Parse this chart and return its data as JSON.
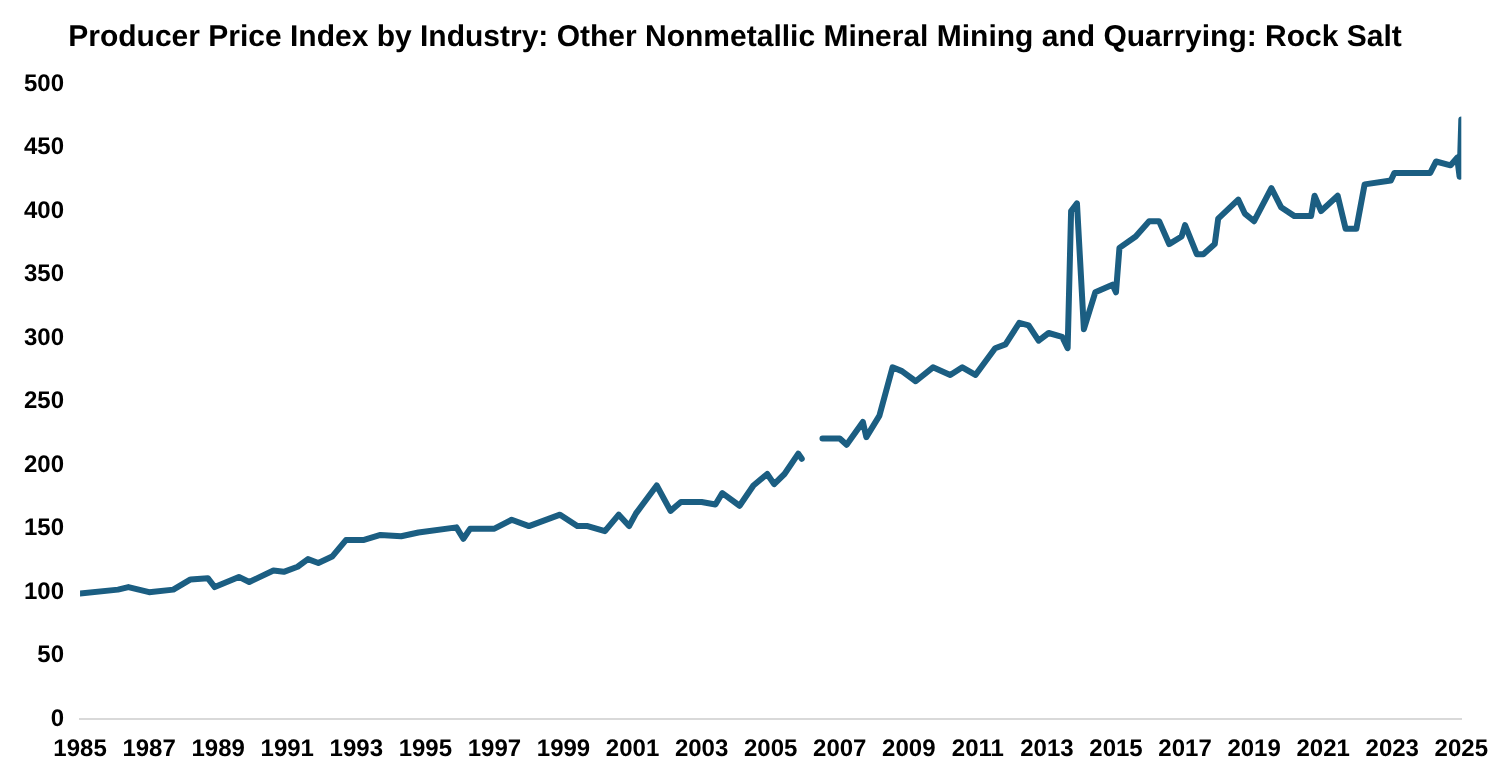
{
  "chart_data": {
    "type": "line",
    "title": "Producer Price Index by Industry: Other Nonmetallic Mineral Mining and Quarrying: Rock Salt",
    "xlim": [
      1985,
      2025
    ],
    "xticks": [
      1985,
      1987,
      1989,
      1991,
      1993,
      1995,
      1997,
      1999,
      2001,
      2003,
      2005,
      2007,
      2009,
      2011,
      2013,
      2015,
      2017,
      2019,
      2021,
      2023,
      2025
    ],
    "ylim": [
      0,
      500
    ],
    "yticks": [
      0,
      50,
      100,
      150,
      200,
      250,
      300,
      350,
      400,
      450,
      500
    ],
    "grid": false,
    "legend": false,
    "marker": "none",
    "line_style": "solid",
    "series": [
      {
        "color": "#1b5e82",
        "x": [
          1985.0,
          1986.1,
          1986.4,
          1987.0,
          1987.7,
          1988.2,
          1988.7,
          1988.9,
          1989.6,
          1989.9,
          1990.6,
          1990.9,
          1991.3,
          1991.6,
          1991.9,
          1992.3,
          1992.7,
          1993.2,
          1993.7,
          1994.3,
          1994.8,
          1995.9,
          1996.1,
          1996.3,
          1997.0,
          1997.5,
          1998.0,
          1998.9,
          1999.4,
          1999.7,
          2000.2,
          2000.6,
          2000.9,
          2001.1,
          2001.7,
          2002.1,
          2002.4,
          2003.0,
          2003.4,
          2003.6,
          2004.1,
          2004.5,
          2004.9,
          2005.1,
          2005.4,
          2005.8,
          2005.9,
          2006.2,
          2006.5,
          2007.0,
          2007.2,
          2007.67,
          2007.77,
          2008.15,
          2008.53,
          2008.8,
          2009.2,
          2009.7,
          2010.2,
          2010.55,
          2010.93,
          2011.5,
          2011.8,
          2012.2,
          2012.47,
          2012.76,
          2013.05,
          2013.44,
          2013.6,
          2013.7,
          2013.87,
          2014.07,
          2014.4,
          2014.9,
          2015.0,
          2015.1,
          2015.57,
          2015.96,
          2016.25,
          2016.54,
          2016.9,
          2017.0,
          2017.34,
          2017.53,
          2017.86,
          2017.96,
          2018.54,
          2018.73,
          2019.0,
          2019.5,
          2019.78,
          2020.17,
          2020.65,
          2020.75,
          2020.94,
          2021.42,
          2021.65,
          2021.96,
          2022.2,
          2022.96,
          2023.06,
          2024.1,
          2024.27,
          2024.69,
          2024.88,
          2024.95,
          2025.0
        ],
        "values": [
          99,
          102,
          104,
          100,
          102,
          110,
          111,
          104,
          112,
          108,
          117,
          116,
          120,
          126,
          123,
          128,
          141,
          141,
          145,
          144,
          147,
          151,
          142,
          150,
          150,
          157,
          152,
          161,
          152,
          152,
          148,
          161,
          152,
          162,
          184,
          164,
          171,
          171,
          169,
          178,
          168,
          184,
          193,
          185,
          193,
          209,
          205,
          null,
          221,
          221,
          216,
          234,
          222,
          239,
          277,
          274,
          266,
          277,
          271,
          277,
          271,
          292,
          295,
          312,
          310,
          298,
          304,
          301,
          292,
          400,
          406,
          307,
          336,
          342,
          336,
          371,
          380,
          392,
          392,
          374,
          380,
          389,
          366,
          366,
          374,
          394,
          409,
          398,
          392,
          418,
          403,
          396,
          396,
          412,
          400,
          412,
          386,
          386,
          421,
          424,
          430,
          430,
          439,
          436,
          442,
          427,
          472
        ]
      }
    ]
  }
}
